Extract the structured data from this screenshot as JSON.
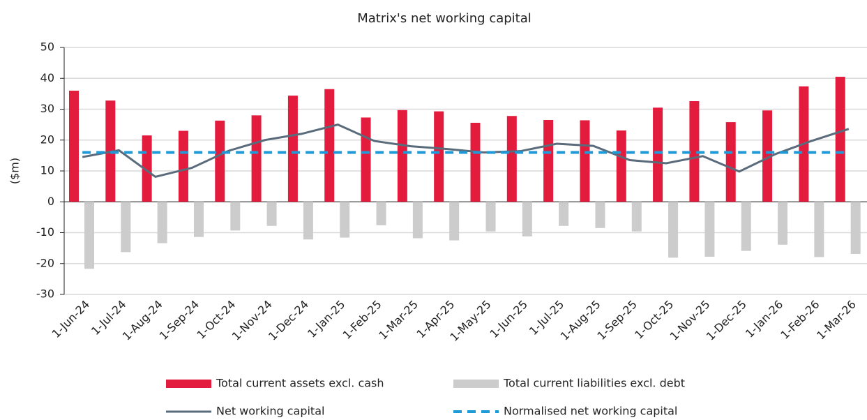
{
  "chart_data": {
    "type": "bar_line",
    "title": "Matrix's net working capital",
    "y_label": "($m)",
    "categories": [
      "1-Jun-24",
      "1-Jul-24",
      "1-Aug-24",
      "1-Sep-24",
      "1-Oct-24",
      "1-Nov-24",
      "1-Dec-24",
      "1-Jan-25",
      "1-Feb-25",
      "1-Mar-25",
      "1-Apr-25",
      "1-May-25",
      "1-Jun-25",
      "1-Jul-25",
      "1-Aug-25",
      "1-Sep-25",
      "1-Oct-25",
      "1-Nov-25",
      "1-Dec-25",
      "1-Jan-26",
      "1-Feb-26",
      "1-Mar-26"
    ],
    "series": [
      {
        "name": "Total current assets excl. cash",
        "color": "#e31c3d",
        "kind": "bar",
        "values": [
          36,
          32.8,
          21.5,
          23,
          26.3,
          28,
          34.4,
          36.5,
          27.3,
          29.7,
          29.3,
          25.6,
          27.8,
          26.5,
          26.4,
          23.1,
          30.5,
          32.6,
          25.8,
          29.6,
          37.4,
          40.5
        ]
      },
      {
        "name": "Total current liabilities excl. debt",
        "color": "#cccccc",
        "kind": "bar",
        "values": [
          -21.7,
          -16.3,
          -13.4,
          -11.4,
          -9.3,
          -7.8,
          -12.2,
          -11.6,
          -7.6,
          -11.8,
          -12.5,
          -9.6,
          -11.2,
          -7.8,
          -8.5,
          -9.6,
          -18.1,
          -17.8,
          -15.9,
          -13.9,
          -17.9,
          -16.9
        ]
      },
      {
        "name": "Net working capital",
        "color": "#5a6b7b",
        "kind": "line",
        "values": [
          14.5,
          16.7,
          8.1,
          11,
          16.5,
          20,
          22,
          25,
          19.7,
          18,
          17.1,
          16,
          16.4,
          18.8,
          18.1,
          13.5,
          12.5,
          14.8,
          9.8,
          15.5,
          19.8,
          23.6
        ]
      },
      {
        "name": "Normalised net working capital",
        "color": "#1f9ad6",
        "kind": "dashed",
        "values": [
          16,
          16,
          16,
          16,
          16,
          16,
          16,
          16,
          16,
          16,
          16,
          16,
          16,
          16,
          16,
          16,
          16,
          16,
          16,
          16,
          16,
          16
        ]
      }
    ],
    "ylim": [
      -30,
      50
    ],
    "yticks": [
      -30,
      -20,
      -10,
      0,
      10,
      20,
      30,
      40,
      50
    ],
    "grid": true
  }
}
